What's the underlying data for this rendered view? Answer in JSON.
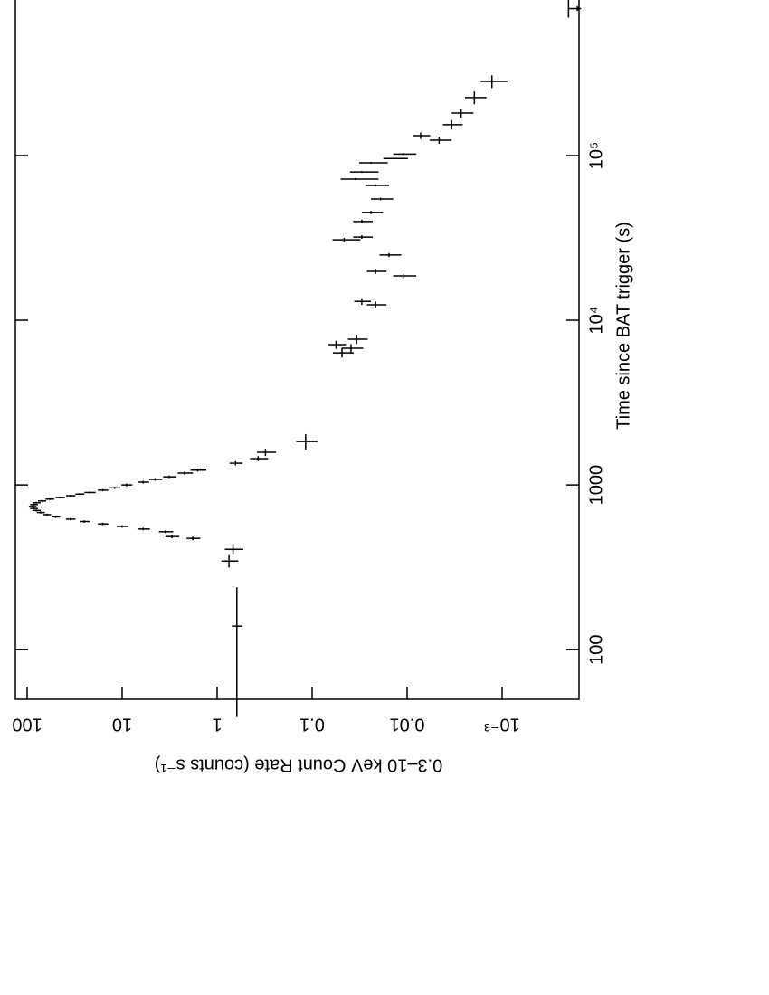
{
  "chart_data": {
    "type": "scatter",
    "xlabel": "Time since BAT trigger (s)",
    "ylabel": "0.3–10 keV Count Rate (counts s⁻¹)",
    "xscale": "log",
    "yscale": "log",
    "color": "#000000",
    "xlim": [
      50,
      880000
    ],
    "xticks": [
      100,
      1000,
      {
        "value": 10000,
        "label": "10⁴"
      },
      {
        "value": 100000,
        "label": "10⁵"
      }
    ],
    "ylim": [
      133,
      0.000155
    ],
    "yticks": [
      100,
      10,
      1,
      0.1,
      0.01,
      {
        "value": 0.001,
        "label": "10⁻³"
      }
    ],
    "x": [
      139,
      345,
      407,
      474,
      486,
      520,
      540,
      560,
      580,
      600,
      620,
      640,
      660,
      680,
      700,
      720,
      740,
      760,
      780,
      800,
      820,
      840,
      860,
      880,
      900,
      930,
      960,
      1000,
      1040,
      1080,
      1120,
      1180,
      1230,
      1355,
      1445,
      1578,
      1835,
      6340,
      6760,
      7110,
      7670,
      12400,
      13000,
      18600,
      19800,
      24900,
      30800,
      32000,
      39800,
      45100,
      54500,
      65900,
      72000,
      79500,
      90400,
      96000,
      102000,
      124000,
      132000,
      154000,
      181000,
      225000,
      282000
    ],
    "values": [
      0.62,
      0.75,
      0.68,
      1.8,
      3.0,
      3.5,
      6,
      10,
      16,
      25,
      35,
      50,
      62,
      72,
      80,
      85,
      88,
      85,
      80,
      70,
      58,
      45,
      35,
      28,
      22,
      16,
      12,
      9,
      6,
      4.5,
      3.2,
      2.2,
      1.6,
      0.64,
      0.37,
      0.31,
      0.117,
      0.0485,
      0.039,
      0.056,
      0.034,
      0.0215,
      0.03,
      0.011,
      0.0215,
      0.0155,
      0.046,
      0.03,
      0.03,
      0.024,
      0.019,
      0.0215,
      0.035,
      0.03,
      0.024,
      0.0138,
      0.011,
      0.0046,
      0.0072,
      0.0034,
      0.0027,
      0.00196,
      0.00128
    ],
    "xerr": [
      100,
      30,
      30,
      12,
      12,
      10,
      10,
      10,
      10,
      10,
      10,
      10,
      10,
      10,
      10,
      10,
      10,
      10,
      10,
      10,
      10,
      10,
      10,
      10,
      10,
      15,
      15,
      20,
      20,
      20,
      20,
      25,
      25,
      40,
      50,
      80,
      200,
      400,
      400,
      400,
      500,
      600,
      600,
      600,
      700,
      700,
      800,
      800,
      1000,
      1000,
      1000,
      1000,
      1000,
      1000,
      1000,
      1000,
      1500,
      6000,
      6000,
      10000,
      12000,
      20000,
      25000
    ],
    "yerr": [
      0.08,
      0.15,
      0.15,
      0.3,
      0.5,
      0.6,
      0.9,
      1.4,
      2,
      3,
      4,
      5,
      6,
      7,
      8,
      8,
      8,
      8,
      8,
      7,
      6,
      5,
      4,
      3,
      3,
      2,
      1.5,
      1.2,
      0.8,
      0.7,
      0.5,
      0.4,
      0.3,
      0.1,
      0.08,
      0.07,
      0.03,
      0.012,
      0.01,
      0.012,
      0.008,
      0.005,
      0.006,
      0.003,
      0.005,
      0.004,
      0.015,
      0.007,
      0.007,
      0.006,
      0.005,
      0.006,
      0.015,
      0.01,
      0.008,
      0.004,
      0.003,
      0.0012,
      0.0015,
      0.0008,
      0.0007,
      0.0005,
      0.0004
    ],
    "upper_limits": {
      "x": [
        780000
      ],
      "values": [
        0.0002
      ]
    }
  }
}
